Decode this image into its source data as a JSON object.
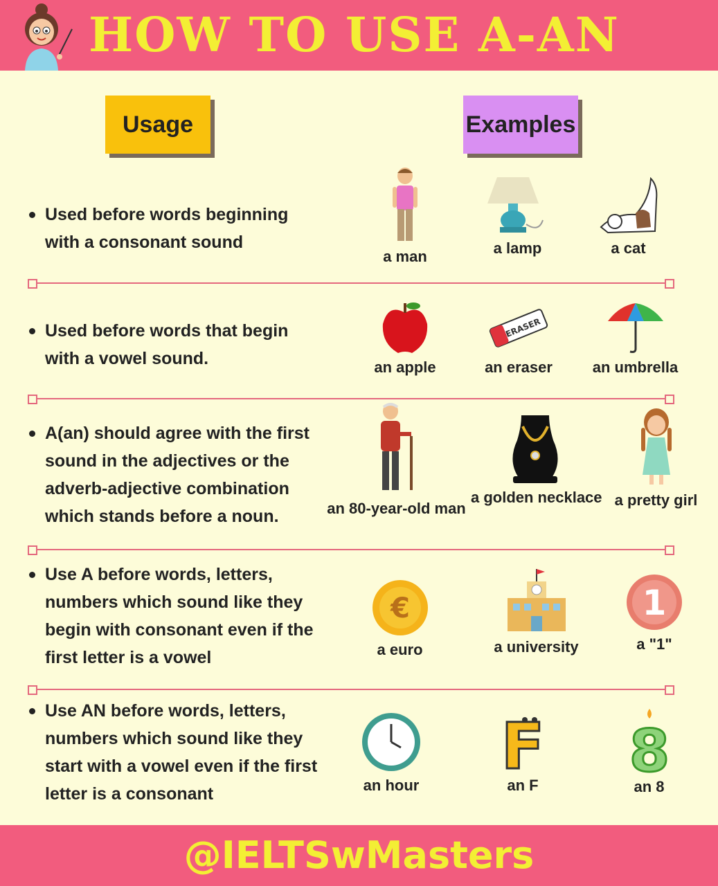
{
  "title": "HOW TO USE A-AN",
  "headers": {
    "usage": "Usage",
    "examples": "Examples"
  },
  "rows": [
    {
      "usage": "Used before words beginning\nwith a consonant sound",
      "examples": [
        {
          "label": "a man",
          "icon": "man-icon"
        },
        {
          "label": "a lamp",
          "icon": "lamp-icon"
        },
        {
          "label": "a cat",
          "icon": "cat-icon"
        }
      ]
    },
    {
      "usage": "Used before words that begin\nwith a vowel sound.",
      "examples": [
        {
          "label": "an apple",
          "icon": "apple-icon"
        },
        {
          "label": "an eraser",
          "icon": "eraser-icon"
        },
        {
          "label": "an umbrella",
          "icon": "umbrella-icon"
        }
      ]
    },
    {
      "usage": "A(an) should agree with the first\nsound in the adjectives or the\nadverb-adjective combination\nwhich stands before a noun.",
      "examples": [
        {
          "label": "an 80-year-old man",
          "icon": "old-man-icon"
        },
        {
          "label": "a golden necklace",
          "icon": "necklace-icon"
        },
        {
          "label": "a pretty girl",
          "icon": "girl-icon"
        }
      ]
    },
    {
      "usage": "Use A before words, letters,\nnumbers which sound like they\nbegin with consonant even if the\nfirst letter is a vowel",
      "examples": [
        {
          "label": "a euro",
          "icon": "euro-coin-icon"
        },
        {
          "label": "a university",
          "icon": "university-building-icon"
        },
        {
          "label": "a \"1\"",
          "icon": "number-one-icon"
        }
      ]
    },
    {
      "usage": "Use AN before words, letters,\nnumbers  which sound like they\nstart with a vowel even if the first\nletter is a consonant",
      "examples": [
        {
          "label": "an hour",
          "icon": "clock-icon"
        },
        {
          "label": "an F",
          "icon": "letter-f-icon"
        },
        {
          "label": "an 8",
          "icon": "number-eight-candle-icon"
        }
      ]
    }
  ],
  "footer": {
    "handle": "@IELTSwMasters"
  },
  "colors": {
    "banner": "#f25c7e",
    "title": "#f3ef34",
    "background": "#fdfcd9",
    "usage_box": "#f9c10c",
    "examples_box": "#d98ff2",
    "separator": "#e4677d"
  }
}
